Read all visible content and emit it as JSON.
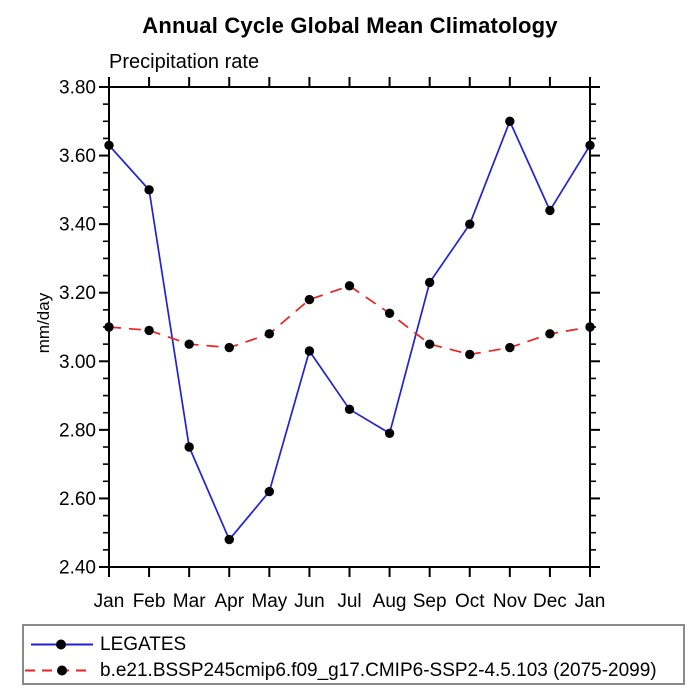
{
  "header": {
    "title": "Annual Cycle Global Mean Climatology",
    "subtitle": "Precipitation rate"
  },
  "axes": {
    "ylabel": "mm/day",
    "ytick_labels": [
      "2.40",
      "2.60",
      "2.80",
      "3.00",
      "3.20",
      "3.40",
      "3.60",
      "3.80"
    ],
    "axis_color": "#000000",
    "legend_border_color": "#8a8a8a"
  },
  "chart_data": {
    "type": "line",
    "title": "Annual Cycle Global Mean Climatology",
    "subtitle": "Precipitation rate",
    "xlabel": "",
    "ylabel": "mm/day",
    "categories": [
      "Jan",
      "Feb",
      "Mar",
      "Apr",
      "May",
      "Jun",
      "Jul",
      "Aug",
      "Sep",
      "Oct",
      "Nov",
      "Dec",
      "Jan"
    ],
    "ylim": [
      2.4,
      3.8
    ],
    "ytick_step": 0.2,
    "yminor_step": 0.05,
    "grid": false,
    "legend_position": "bottom-left-box",
    "marker": "filled-circle",
    "marker_color": "#000000",
    "series": [
      {
        "name": "LEGATES",
        "color": "#2222d5",
        "style": "solid",
        "values": [
          3.63,
          3.5,
          2.75,
          2.48,
          2.62,
          3.03,
          2.86,
          2.79,
          3.23,
          3.4,
          3.7,
          3.44,
          3.63
        ]
      },
      {
        "name": "b.e21.BSSP245cmip6.f09_g17.CMIP6-SSP2-4.5.103 (2075-2099)",
        "color": "#ee2222",
        "style": "dashed",
        "values": [
          3.1,
          3.09,
          3.05,
          3.04,
          3.08,
          3.18,
          3.22,
          3.14,
          3.05,
          3.02,
          3.04,
          3.08,
          3.1
        ]
      }
    ]
  }
}
